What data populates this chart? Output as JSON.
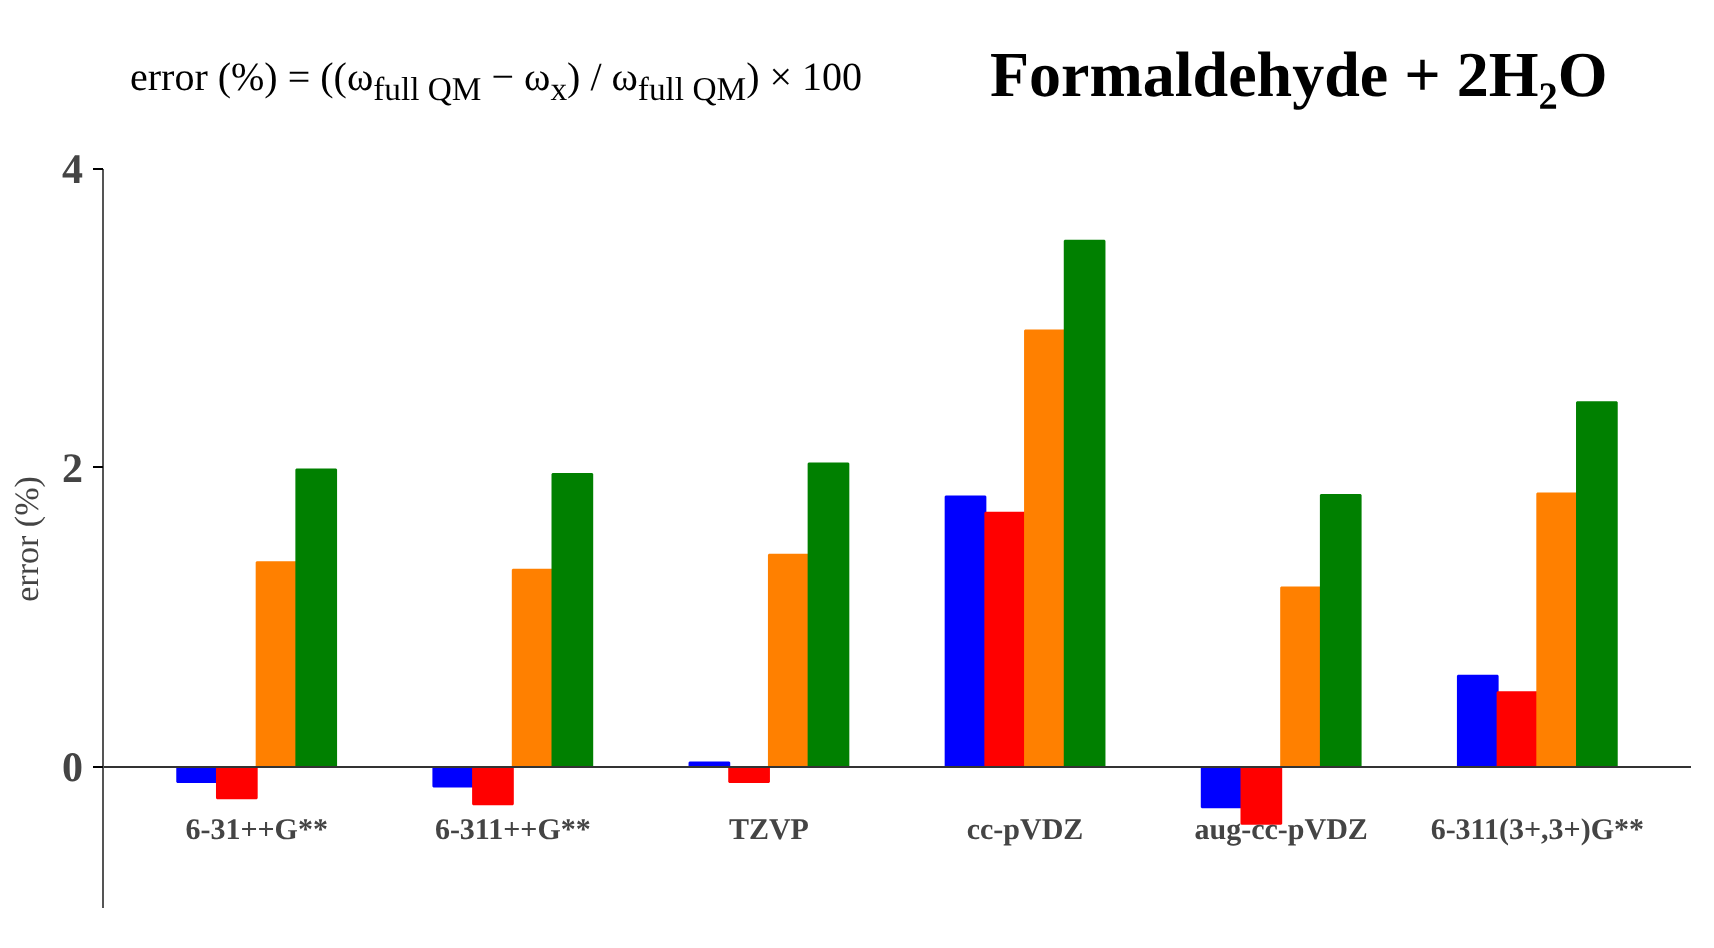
{
  "chart_data": {
    "type": "bar",
    "title": "Formaldehyde + 2H₂O",
    "ylabel": "error (%)",
    "annotations": [
      "error (%) = ((ω$_{full QM}$ − ω$_{x}$) / ω$_{full QM}$) × 100"
    ],
    "categories": [
      "6-31++G**",
      "6-311++G**",
      "TZVP",
      "cc-pVDZ",
      "aug-cc-pVDZ",
      "6-311(3+,3+)G**"
    ],
    "series": [
      {
        "color": "#0000ff",
        "values": [
          -0.1,
          -0.13,
          0.03,
          1.81,
          -0.27,
          0.61
        ]
      },
      {
        "color": "#ff0000",
        "values": [
          -0.21,
          -0.25,
          -0.1,
          1.7,
          -0.38,
          0.5
        ]
      },
      {
        "color": "#ff8000",
        "values": [
          1.37,
          1.32,
          1.42,
          2.92,
          1.2,
          1.83
        ]
      },
      {
        "color": "#008000",
        "values": [
          1.99,
          1.96,
          2.03,
          3.52,
          1.82,
          2.44
        ]
      }
    ],
    "ylim": [
      -0.95,
      4
    ],
    "yticks": [
      0,
      2,
      4
    ],
    "grid": false
  }
}
